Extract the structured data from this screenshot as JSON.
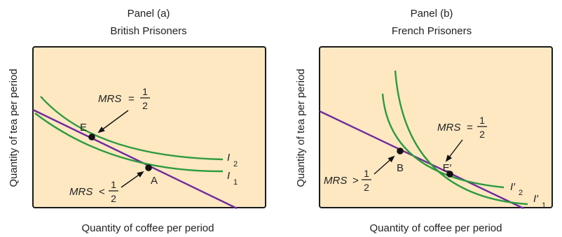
{
  "colors": {
    "panel_bg": "#fde8c2",
    "frame": "#1a1a1a",
    "curve": "#2e9b3e",
    "budget_line": "#6e2c9b",
    "arrow": "#111111",
    "text": "#222222"
  },
  "panels": [
    {
      "heading": "Panel (a)",
      "subheading": "British Prisoners",
      "x_axis_label": "Quantity of coffee per period",
      "y_axis_label": "Quantity of tea per period",
      "point_upper": {
        "label": "E"
      },
      "point_lower": {
        "label": "A"
      },
      "annotation_upper": {
        "mrs": "MRS",
        "op": "=",
        "num": "1",
        "den": "2"
      },
      "annotation_lower": {
        "mrs": "MRS",
        "op": "<",
        "num": "1",
        "den": "2"
      },
      "curve_upper": {
        "italic": "I",
        "sub": "2"
      },
      "curve_lower": {
        "italic": "I",
        "sub": "1"
      }
    },
    {
      "heading": "Panel (b)",
      "subheading": "French Prisoners",
      "x_axis_label": "Quantity of coffee per period",
      "y_axis_label": "Quantity of tea per period",
      "point_upper": {
        "label": "B"
      },
      "point_lower": {
        "label": "E′"
      },
      "annotation_upper": {
        "mrs": "MRS",
        "op": "=",
        "num": "1",
        "den": "2"
      },
      "annotation_lower": {
        "mrs": "MRS",
        "op": ">",
        "num": "1",
        "den": "2"
      },
      "curve_upper": {
        "italic": "I′",
        "sub": "2"
      },
      "curve_lower": {
        "italic": "I′",
        "sub": "1"
      }
    }
  ]
}
